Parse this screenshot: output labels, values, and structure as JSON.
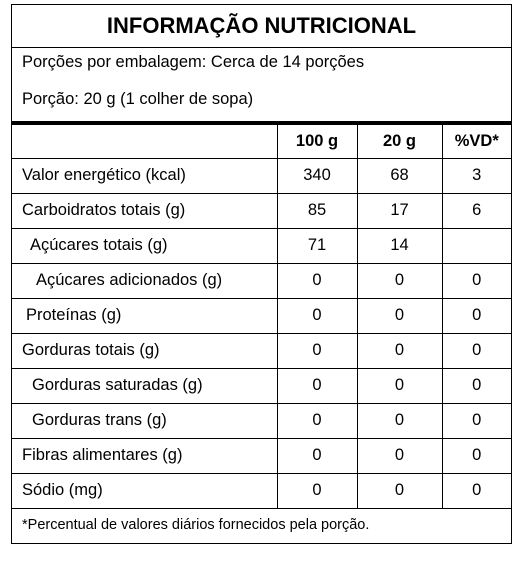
{
  "title": "INFORMAÇÃO NUTRICIONAL",
  "servings_per_package": "Porções por embalagem: Cerca de 14 porções",
  "serving_size": "Porção: 20 g (1 colher de sopa)",
  "columns": [
    "",
    "100 g",
    "20 g",
    "%VD*"
  ],
  "rows": [
    {
      "name": "Valor energético (kcal)",
      "per100": "340",
      "per20": "68",
      "vd": "3"
    },
    {
      "name": "Carboidratos totais (g)",
      "per100": "85",
      "per20": "17",
      "vd": "6"
    },
    {
      "name": "Açúcares totais (g)",
      "per100": "71",
      "per20": "14",
      "vd": ""
    },
    {
      "name": "Açúcares adicionados (g)",
      "per100": "0",
      "per20": "0",
      "vd": "0"
    },
    {
      "name": "Proteínas (g)",
      "per100": "0",
      "per20": "0",
      "vd": "0"
    },
    {
      "name": "Gorduras totais (g)",
      "per100": "0",
      "per20": "0",
      "vd": "0"
    },
    {
      "name": "Gorduras saturadas (g)",
      "per100": "0",
      "per20": "0",
      "vd": "0"
    },
    {
      "name": "Gorduras trans (g)",
      "per100": "0",
      "per20": "0",
      "vd": "0"
    },
    {
      "name": "Fibras alimentares (g)",
      "per100": "0",
      "per20": "0",
      "vd": "0"
    },
    {
      "name": "Sódio (mg)",
      "per100": "0",
      "per20": "0",
      "vd": "0"
    }
  ],
  "footnote": "*Percentual de valores diários fornecidos pela porção."
}
